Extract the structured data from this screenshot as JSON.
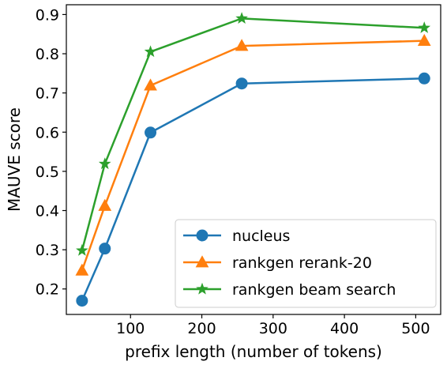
{
  "chart_data": {
    "type": "line",
    "title": "",
    "xlabel": "prefix length (number of tokens)",
    "ylabel": "MAUVE score",
    "x": [
      32,
      64,
      128,
      256,
      512
    ],
    "xlim": [
      10,
      535
    ],
    "ylim": [
      0.135,
      0.925
    ],
    "xticks": [
      100,
      200,
      300,
      400,
      500
    ],
    "yticks": [
      0.2,
      0.3,
      0.4,
      0.5,
      0.6,
      0.7,
      0.8,
      0.9
    ],
    "ytick_labels": [
      "0.2",
      "0.3",
      "0.4",
      "0.5",
      "0.6",
      "0.7",
      "0.8",
      "0.9"
    ],
    "grid": false,
    "legend_position": "lower-right",
    "series": [
      {
        "name": "nucleus",
        "marker": "circle",
        "color": "#1f77b4",
        "values": [
          0.17,
          0.303,
          0.599,
          0.724,
          0.737
        ]
      },
      {
        "name": "rankgen rerank-20",
        "marker": "triangle",
        "color": "#ff7f0e",
        "values": [
          0.247,
          0.412,
          0.719,
          0.82,
          0.833
        ]
      },
      {
        "name": "rankgen beam search",
        "marker": "star",
        "color": "#2ca02c",
        "values": [
          0.298,
          0.519,
          0.805,
          0.89,
          0.866
        ]
      }
    ]
  }
}
